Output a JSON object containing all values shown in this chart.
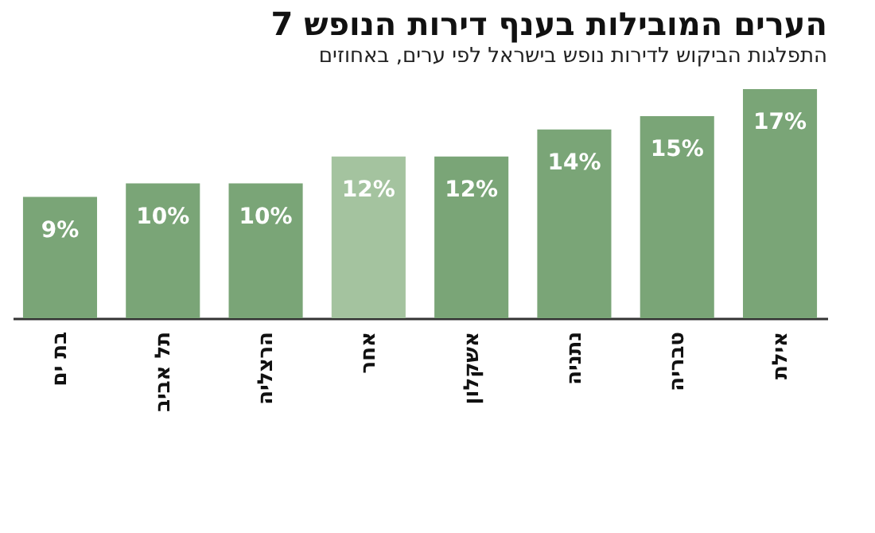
{
  "chart_data": {
    "type": "bar",
    "title": "7 הערים המובילות בענף דירות הנופש",
    "subtitle": "התפלגות הביקוש לדירות נופש בישראל לפי ערים, באחוזים",
    "categories": [
      "בת ים",
      "תל אביב",
      "הרצליה",
      "אחר",
      "אשקלון",
      "נתניה",
      "טבריה",
      "אילת"
    ],
    "values": [
      9,
      10,
      10,
      12,
      12,
      14,
      15,
      17
    ],
    "colors": [
      "#7aa577",
      "#7aa577",
      "#7aa577",
      "#a4c39f",
      "#7aa577",
      "#7aa577",
      "#7aa577",
      "#7aa577"
    ],
    "value_labels": [
      "9%",
      "10%",
      "10%",
      "12%",
      "12%",
      "14%",
      "15%",
      "17%"
    ]
  }
}
